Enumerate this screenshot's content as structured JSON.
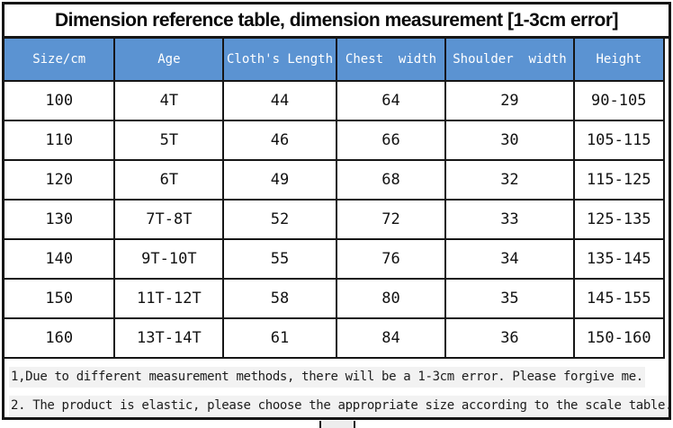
{
  "title": "Dimension reference table, dimension measurement [1-3cm error]",
  "table": {
    "columns": [
      "Size/cm",
      "Age",
      "Cloth's Length",
      "Chest  width",
      "Shoulder  width",
      "Height"
    ],
    "rows": [
      [
        "100",
        "4T",
        "44",
        "64",
        "29",
        "90-105"
      ],
      [
        "110",
        "5T",
        "46",
        "66",
        "30",
        "105-115"
      ],
      [
        "120",
        "6T",
        "49",
        "68",
        "32",
        "115-125"
      ],
      [
        "130",
        "7T-8T",
        "52",
        "72",
        "33",
        "125-135"
      ],
      [
        "140",
        "9T-10T",
        "55",
        "76",
        "34",
        "135-145"
      ],
      [
        "150",
        "11T-12T",
        "58",
        "80",
        "35",
        "145-155"
      ],
      [
        "160",
        "13T-14T",
        "61",
        "84",
        "36",
        "150-160"
      ]
    ]
  },
  "notes": [
    "1,Due to different measurement methods, there will be a 1-3cm error. Please forgive me.",
    "2. The product is elastic, please choose the appropriate size according to the scale table."
  ],
  "colors": {
    "header_bg": "#5B93D2",
    "header_text": "#FFFFFF",
    "grid_border": "#161616",
    "note_highlight": "#F2F2F2"
  }
}
